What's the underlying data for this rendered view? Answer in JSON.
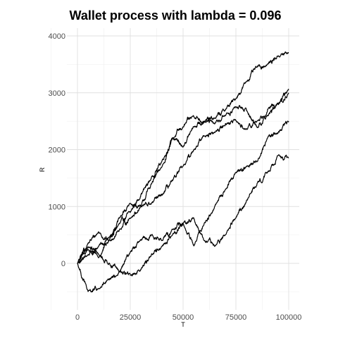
{
  "chart_data": {
    "type": "line",
    "title": "Wallet process with lambda =  0.096",
    "xlabel": "T",
    "ylabel": "R",
    "xlim": [
      0,
      100000
    ],
    "ylim": [
      -700,
      4000
    ],
    "x_ticks": [
      0,
      25000,
      50000,
      75000,
      100000
    ],
    "x_tick_labels": [
      "0",
      "25000",
      "50000",
      "75000",
      "100000"
    ],
    "y_ticks": [
      0,
      1000,
      2000,
      3000,
      4000
    ],
    "y_tick_labels": [
      "0",
      "1000",
      "2000",
      "3000",
      "4000"
    ],
    "grid": true,
    "legend": "none",
    "series": [
      {
        "x": [
          0,
          5000,
          10000,
          15000,
          20000,
          25000,
          30000,
          35000,
          40000,
          45000,
          50000,
          55000,
          60000,
          65000,
          70000,
          75000,
          80000,
          85000,
          90000,
          95000,
          100000
        ],
        "values": [
          0,
          150,
          300,
          450,
          700,
          900,
          1200,
          1500,
          1800,
          2200,
          2400,
          2600,
          2500,
          2550,
          2700,
          2900,
          3200,
          3450,
          3500,
          3650,
          3700
        ]
      },
      {
        "x": [
          0,
          5000,
          10000,
          15000,
          20000,
          25000,
          30000,
          35000,
          40000,
          45000,
          50000,
          55000,
          60000,
          65000,
          70000,
          75000,
          80000,
          85000,
          90000,
          95000,
          100000
        ],
        "values": [
          0,
          350,
          550,
          400,
          800,
          1050,
          1000,
          1400,
          1700,
          2200,
          2050,
          2400,
          2500,
          2450,
          2600,
          2750,
          2700,
          2400,
          2600,
          2800,
          3000
        ]
      },
      {
        "x": [
          0,
          5000,
          10000,
          15000,
          20000,
          25000,
          30000,
          35000,
          40000,
          45000,
          50000,
          55000,
          60000,
          65000,
          70000,
          75000,
          80000,
          85000,
          90000,
          95000,
          100000
        ],
        "values": [
          0,
          250,
          100,
          400,
          600,
          800,
          1000,
          1050,
          1200,
          1450,
          1700,
          2000,
          2250,
          2300,
          2450,
          2500,
          2350,
          2500,
          2700,
          2800,
          3050
        ]
      },
      {
        "x": [
          0,
          5000,
          10000,
          15000,
          20000,
          25000,
          30000,
          35000,
          40000,
          45000,
          50000,
          55000,
          60000,
          65000,
          70000,
          75000,
          80000,
          85000,
          90000,
          95000,
          100000
        ],
        "values": [
          0,
          300,
          150,
          0,
          -150,
          200,
          400,
          500,
          400,
          600,
          700,
          300,
          700,
          1000,
          1300,
          1600,
          1700,
          1800,
          2200,
          2300,
          2500
        ]
      },
      {
        "x": [
          0,
          5000,
          10000,
          15000,
          20000,
          25000,
          30000,
          35000,
          40000,
          45000,
          50000,
          55000,
          60000,
          65000,
          70000,
          75000,
          80000,
          85000,
          90000,
          95000,
          100000
        ],
        "values": [
          0,
          -500,
          -450,
          -300,
          -150,
          -200,
          -100,
          150,
          300,
          500,
          700,
          800,
          400,
          300,
          500,
          800,
          1100,
          1400,
          1600,
          1900,
          1850
        ]
      }
    ]
  }
}
